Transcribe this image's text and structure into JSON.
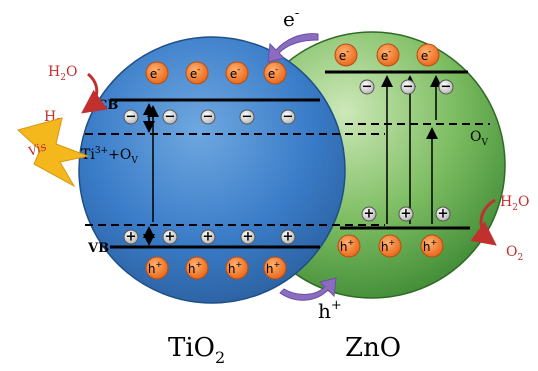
{
  "materials": {
    "left": "TiO",
    "left_sub": "2",
    "right": "ZnO"
  },
  "bands": {
    "cb": "CB",
    "vb": "VB"
  },
  "defect": {
    "ti_main": "Ti",
    "ti_sup": "3+",
    "plus_o": "+O",
    "o_sub": "V"
  },
  "ov_label": {
    "main": "O",
    "sub": "V"
  },
  "transfer": {
    "electron": "e",
    "electron_sup": "-",
    "hole": "h",
    "hole_sup": "+"
  },
  "reactions": {
    "reduction_reactant": {
      "a": "H",
      "sub": "2",
      "b": "O"
    },
    "reduction_product": {
      "a": "H",
      "sub": "2"
    },
    "oxidation_reactant": {
      "a": "H",
      "sub": "2",
      "b": "O"
    },
    "oxidation_product": {
      "a": "O",
      "sub": "2"
    }
  },
  "light": "Vis",
  "particles": {
    "electron": "e",
    "electron_sup": "-",
    "hole": "h",
    "hole_sup": "+"
  },
  "colors": {
    "tio2_sphere": "#3a7cc8",
    "zno_sphere": "#5aa04a",
    "carrier": "#f07a2a",
    "transfer_arrow": "#8a6cc0",
    "reaction_arrow": "#c0302f",
    "reaction_text": "#c0302f",
    "light_bolt": "#f5b81c"
  }
}
